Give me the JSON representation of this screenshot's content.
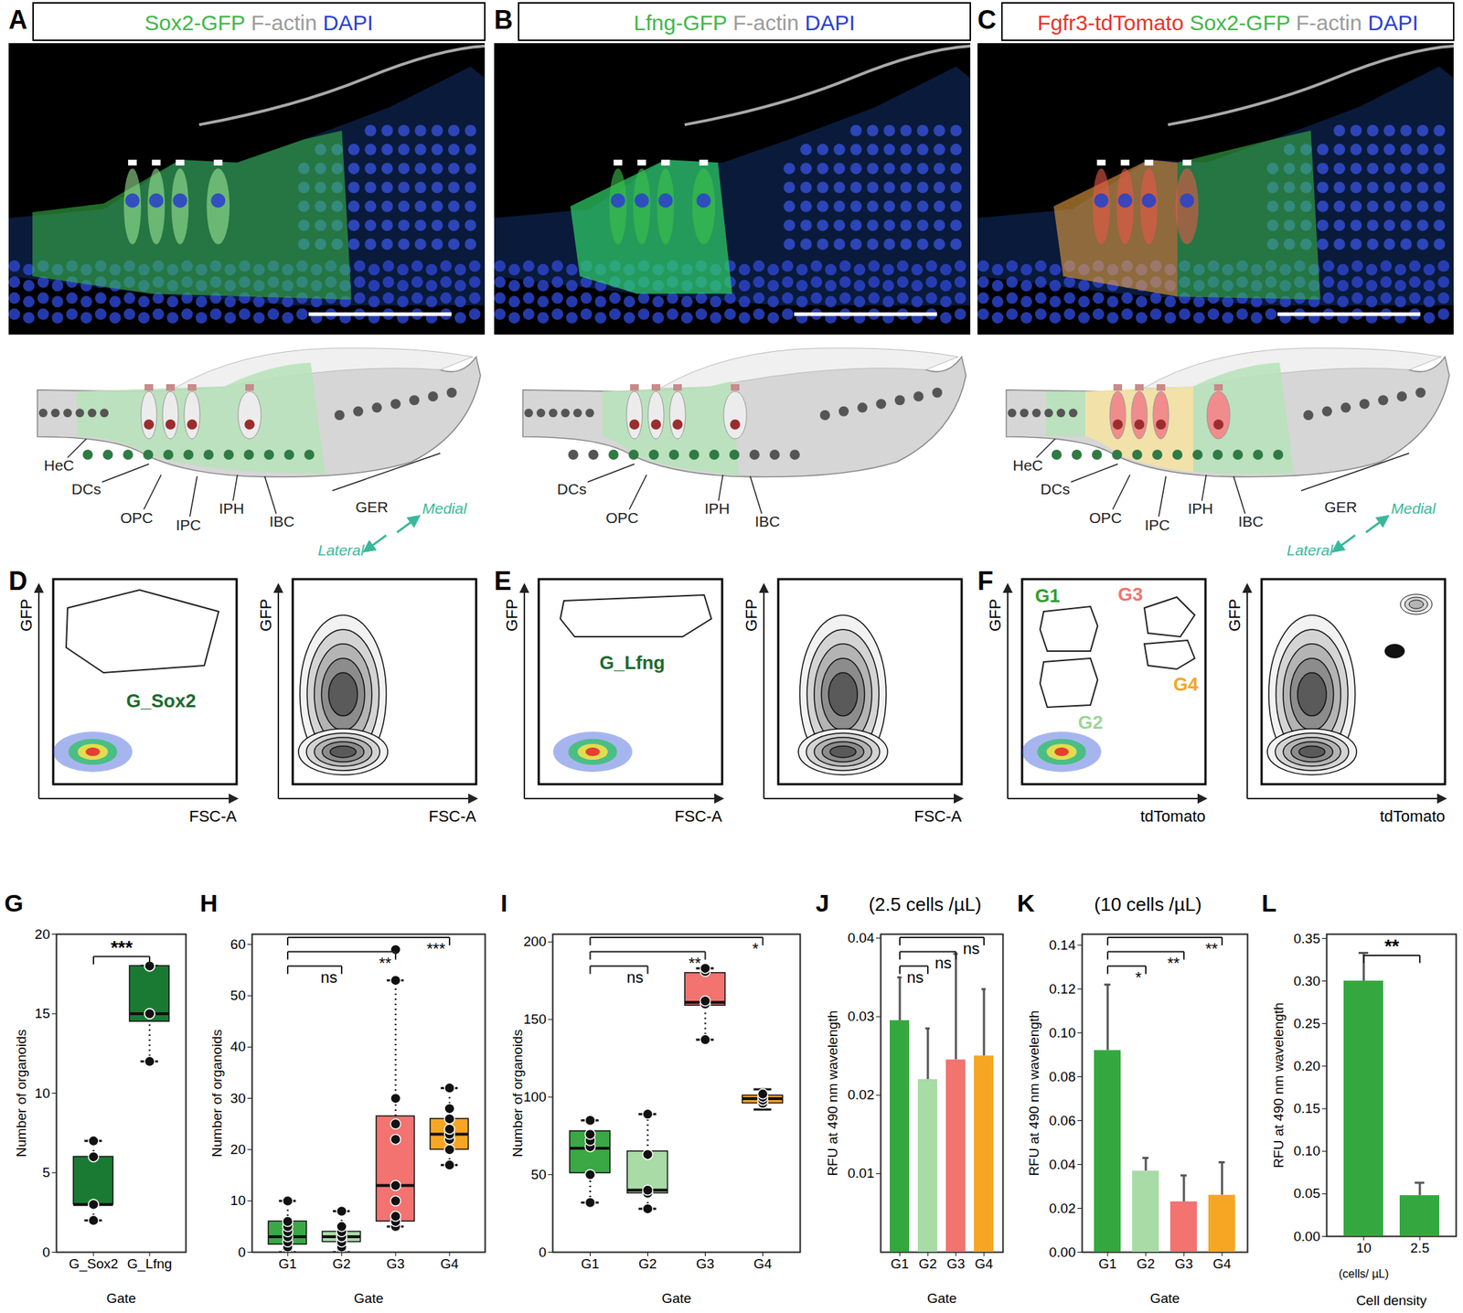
{
  "image_panels": [
    {
      "letter": "A",
      "header": [
        {
          "text": "Sox2-GFP",
          "color": "#43b649"
        },
        {
          "text": "F-actin",
          "color": "#9b9b9b"
        },
        {
          "text": "DAPI",
          "color": "#2b3fd1"
        }
      ],
      "schematic_labels": [
        "HeC",
        "DCs",
        "OPC",
        "IPC",
        "IPH",
        "IBC",
        "GER",
        "Medial",
        "Lateral"
      ]
    },
    {
      "letter": "B",
      "header": [
        {
          "text": "Lfng-GFP",
          "color": "#43b649"
        },
        {
          "text": "F-actin",
          "color": "#9b9b9b"
        },
        {
          "text": "DAPI",
          "color": "#2b3fd1"
        }
      ],
      "schematic_labels": [
        null,
        "DCs",
        "OPC",
        null,
        "IPH",
        "IBC",
        null,
        null,
        null
      ]
    },
    {
      "letter": "C",
      "header": [
        {
          "text": "Fgfr3-tdTomato",
          "color": "#e8322a"
        },
        {
          "text": "Sox2-GFP",
          "color": "#43b649"
        },
        {
          "text": "F-actin",
          "color": "#9b9b9b"
        },
        {
          "text": "DAPI",
          "color": "#2b3fd1"
        }
      ],
      "schematic_labels": [
        "HeC",
        "DCs",
        "OPC",
        "IPC",
        "IPH",
        "IBC",
        "GER",
        "Medial",
        "Lateral"
      ]
    }
  ],
  "flow_panels": [
    {
      "letter": "D",
      "x_label": "FSC-A",
      "y_label": "GFP",
      "gates": [
        {
          "name": "G_Sox2",
          "color": "#1d6b2f"
        }
      ]
    },
    {
      "letter": "E",
      "x_label": "FSC-A",
      "y_label": "GFP",
      "gates": [
        {
          "name": "G_Lfng",
          "color": "#1d6b2f"
        }
      ]
    },
    {
      "letter": "F",
      "x_label": "tdTomato",
      "y_label": "GFP",
      "gates": [
        {
          "name": "G1",
          "color": "#2ca02c"
        },
        {
          "name": "G2",
          "color": "#9fd49b"
        },
        {
          "name": "G3",
          "color": "#f07470"
        },
        {
          "name": "G4",
          "color": "#f5a623"
        }
      ]
    }
  ],
  "chart_data": [
    {
      "letter": "G",
      "type": "box",
      "x_label": "Gate",
      "y_label": "Number of organoids",
      "categories": [
        "G_Sox2",
        "G_Lfng"
      ],
      "colors": [
        "#1a7a33",
        "#1a7a33"
      ],
      "q1": [
        3,
        14.5
      ],
      "median": [
        3,
        15
      ],
      "q3": [
        6,
        18
      ],
      "low": [
        2,
        12
      ],
      "high": [
        7,
        18
      ],
      "points": [
        [
          2,
          3,
          3,
          6,
          7
        ],
        [
          12,
          15,
          15,
          18,
          18
        ]
      ],
      "ylim": [
        0,
        20
      ],
      "yticks": [
        0,
        5,
        10,
        15,
        20
      ],
      "significance": [
        {
          "from": "G_Sox2",
          "to": "G_Lfng",
          "label": "***"
        }
      ]
    },
    {
      "letter": "H",
      "type": "box",
      "x_label": "Gate",
      "y_label": "Number of organoids",
      "categories": [
        "G1",
        "G2",
        "G3",
        "G4"
      ],
      "colors": [
        "#3aa845",
        "#a8dba5",
        "#f2736f",
        "#f6a623"
      ],
      "q1": [
        1.5,
        2,
        6,
        20
      ],
      "median": [
        3,
        3,
        13,
        23
      ],
      "q3": [
        6,
        4,
        26.5,
        26
      ],
      "low": [
        0,
        0,
        5,
        17
      ],
      "high": [
        10,
        8,
        53,
        32
      ],
      "points": [
        [
          0,
          1,
          2,
          3,
          4,
          5,
          6,
          10
        ],
        [
          0,
          1,
          2,
          3,
          3,
          4,
          5,
          8
        ],
        [
          5,
          6,
          7,
          10,
          13,
          22,
          25,
          30,
          53,
          59
        ],
        [
          17,
          20,
          22,
          23,
          24,
          26,
          28,
          32
        ]
      ],
      "ylim": [
        0,
        62
      ],
      "yticks": [
        0,
        10,
        20,
        30,
        40,
        50,
        60
      ],
      "significance": [
        {
          "from": "G1",
          "to": "G2",
          "label": "ns"
        },
        {
          "from": "G1",
          "to": "G3",
          "label": "**"
        },
        {
          "from": "G1",
          "to": "G4",
          "label": "***"
        }
      ]
    },
    {
      "letter": "I",
      "type": "box",
      "x_label": "Gate",
      "y_label": "Number of organoids",
      "categories": [
        "G1",
        "G2",
        "G3",
        "G4"
      ],
      "colors": [
        "#3aa845",
        "#a8dba5",
        "#f2736f",
        "#f6a623"
      ],
      "q1": [
        51,
        38,
        159,
        96
      ],
      "median": [
        67,
        40,
        161,
        99
      ],
      "q3": [
        78,
        65,
        180,
        101
      ],
      "low": [
        32,
        28,
        137,
        92
      ],
      "high": [
        85,
        89,
        183,
        105
      ],
      "points": [
        [
          32,
          50,
          68,
          72,
          76,
          85
        ],
        [
          28,
          38,
          40,
          63,
          89
        ],
        [
          137,
          160,
          162,
          181,
          183
        ],
        [
          96,
          98,
          100,
          102
        ]
      ],
      "ylim": [
        0,
        205
      ],
      "yticks": [
        0,
        50,
        100,
        150,
        200
      ],
      "significance": [
        {
          "from": "G1",
          "to": "G2",
          "label": "ns"
        },
        {
          "from": "G1",
          "to": "G3",
          "label": "**"
        },
        {
          "from": "G1",
          "to": "G4",
          "label": "*"
        }
      ]
    },
    {
      "letter": "J",
      "type": "bar",
      "title": "(2.5 cells /µL)",
      "x_label": "Gate",
      "y_label": "RFU at 490 nm wavelength",
      "categories": [
        "G1",
        "G2",
        "G3",
        "G4"
      ],
      "colors": [
        "#34a83f",
        "#a8dba5",
        "#f2736f",
        "#f6a623"
      ],
      "values": [
        0.0295,
        0.022,
        0.0245,
        0.025
      ],
      "errors": [
        0.0055,
        0.0065,
        0.0135,
        0.0085
      ],
      "ylim": [
        0,
        0.0405
      ],
      "yticks": [
        0.01,
        0.02,
        0.03,
        0.04
      ],
      "significance": [
        {
          "from": "G1",
          "to": "G2",
          "label": "ns"
        },
        {
          "from": "G1",
          "to": "G3",
          "label": "ns"
        },
        {
          "from": "G1",
          "to": "G4",
          "label": "ns"
        }
      ]
    },
    {
      "letter": "K",
      "type": "bar",
      "title": "(10 cells /µL)",
      "x_label": "Gate",
      "y_label": "RFU at 490 nm wavelength",
      "categories": [
        "G1",
        "G2",
        "G3",
        "G4"
      ],
      "colors": [
        "#34a83f",
        "#a8dba5",
        "#f2736f",
        "#f6a623"
      ],
      "values": [
        0.092,
        0.037,
        0.023,
        0.026
      ],
      "errors": [
        0.03,
        0.006,
        0.012,
        0.015
      ],
      "ylim": [
        0,
        0.145
      ],
      "yticks": [
        {
          "value": 0,
          "label": "0.00"
        },
        0.02,
        0.04,
        0.06,
        0.08,
        {
          "value": 0.1,
          "label": "0.10"
        },
        0.12,
        0.14
      ],
      "significance": [
        {
          "from": "G1",
          "to": "G2",
          "label": "*"
        },
        {
          "from": "G1",
          "to": "G3",
          "label": "**"
        },
        {
          "from": "G1",
          "to": "G4",
          "label": "**"
        }
      ]
    },
    {
      "letter": "L",
      "type": "bar",
      "x_label": "Cell density",
      "x_sublabel": "(cells/ µL)",
      "y_label": "RFU at 490 nm wavelength",
      "categories": [
        "10",
        "2.5"
      ],
      "colors": [
        "#34a83f",
        "#34a83f"
      ],
      "values": [
        0.3,
        0.048
      ],
      "errors": [
        0.033,
        0.015
      ],
      "ylim": [
        0,
        0.355
      ],
      "yticks": [
        {
          "value": 0,
          "label": "0.00"
        },
        0.05,
        {
          "value": 0.1,
          "label": "0.10"
        },
        0.15,
        {
          "value": 0.2,
          "label": "0.20"
        },
        0.25,
        {
          "value": 0.3,
          "label": "0.30"
        },
        0.35
      ],
      "significance": [
        {
          "from": "10",
          "to": "2.5",
          "label": "**"
        }
      ]
    }
  ]
}
